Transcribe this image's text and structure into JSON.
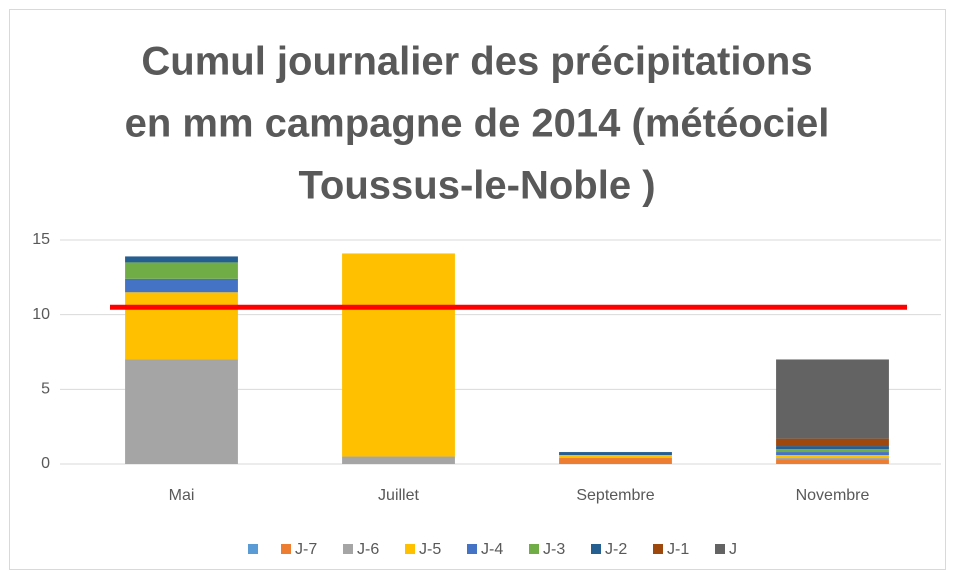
{
  "chart_data": {
    "type": "stacked_bar",
    "title": [
      "Cumul journalier des précipitations",
      "en mm campagne de 2014 (météociel",
      "Toussus-le-Noble )"
    ],
    "categories": [
      "Mai",
      "Juillet",
      "Septembre",
      "Novembre"
    ],
    "series": [
      {
        "name": null,
        "color": "#5b9bd5",
        "values": [
          0,
          0,
          0,
          0
        ]
      },
      {
        "name": "J-7",
        "color": "#ed7d31",
        "values": [
          0,
          0,
          0.4,
          0.3
        ]
      },
      {
        "name": "J-6",
        "color": "#a5a5a5",
        "values": [
          7,
          0.5,
          0,
          0.1
        ]
      },
      {
        "name": "J-5",
        "color": "#ffc000",
        "values": [
          4.5,
          13.6,
          0.2,
          0.2
        ]
      },
      {
        "name": "J-4",
        "color": "#4472c4",
        "values": [
          0.9,
          0,
          0,
          0.2
        ]
      },
      {
        "name": "J-3",
        "color": "#70ad47",
        "values": [
          1.1,
          0,
          0,
          0.2
        ]
      },
      {
        "name": "J-2",
        "color": "#255e91",
        "values": [
          0.4,
          0,
          0.2,
          0.2
        ]
      },
      {
        "name": "J-1",
        "color": "#9e480e",
        "values": [
          0,
          0,
          0,
          0.5
        ]
      },
      {
        "name": "J",
        "color": "#636363",
        "values": [
          0,
          0,
          0,
          5.3
        ]
      }
    ],
    "threshold": {
      "value": 10.5,
      "color": "#ff0000"
    },
    "ylim": [
      0,
      15
    ],
    "yticks": [
      0,
      5,
      10,
      15
    ],
    "grid": true,
    "legend": "bottom"
  }
}
